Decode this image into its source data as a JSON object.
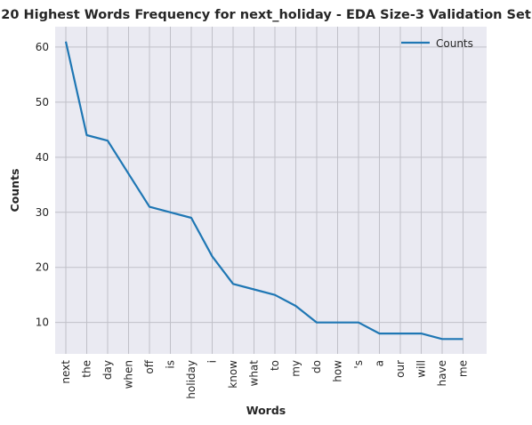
{
  "chart_data": {
    "type": "line",
    "title": "20 Highest Words Frequency for next_holiday - EDA Size-3 Validation Set",
    "xlabel": "Words",
    "ylabel": "Counts",
    "categories": [
      "next",
      "the",
      "day",
      "when",
      "off",
      "is",
      "holiday",
      "i",
      "know",
      "what",
      "to",
      "my",
      "do",
      "how",
      "'s",
      "a",
      "our",
      "will",
      "have",
      "me"
    ],
    "series": [
      {
        "name": "Counts",
        "values": [
          61,
          44,
          43,
          37,
          31,
          30,
          29,
          22,
          17,
          16,
          15,
          13,
          10,
          10,
          10,
          8,
          8,
          8,
          7,
          7
        ]
      }
    ],
    "ylim": [
      4.3,
      63.7
    ],
    "yticks": [
      10,
      20,
      30,
      40,
      50,
      60
    ],
    "grid": true,
    "legend_position": "top-right",
    "colors": {
      "line": "#1f77b4",
      "plot_bg": "#eaeaf2",
      "grid": "#c0c0c8",
      "text": "#262626"
    }
  }
}
